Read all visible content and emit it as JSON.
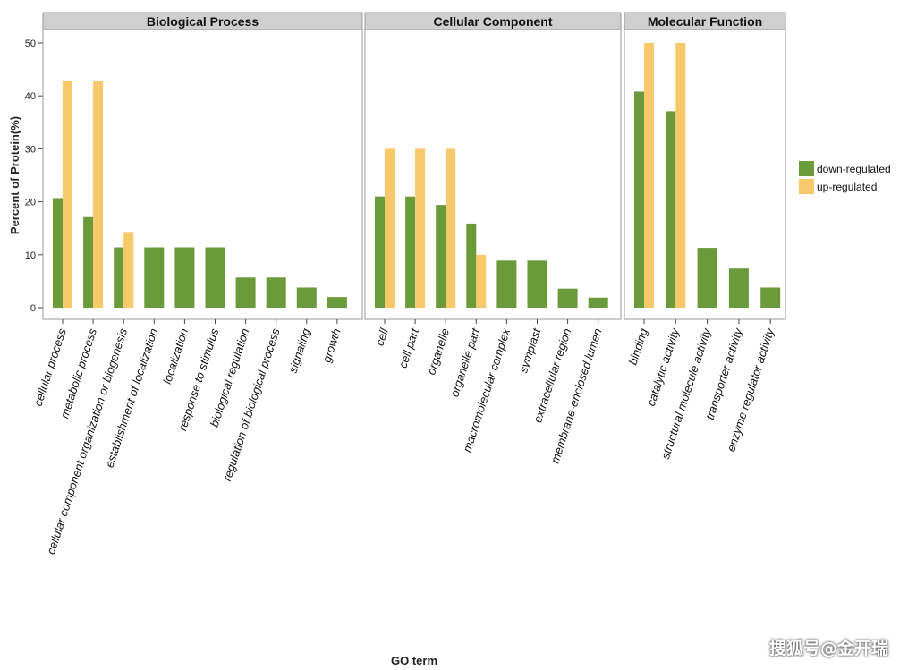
{
  "chart_data": {
    "type": "bar",
    "ylabel": "Percent of Protein(%)",
    "xlabel": "GO term",
    "ylim": [
      0,
      53
    ],
    "yticks": [
      0,
      10,
      20,
      30,
      40,
      50
    ],
    "legend": {
      "position": "right",
      "entries": [
        {
          "name": "down-regulated",
          "color": "#6a9a3a"
        },
        {
          "name": "up-regulated",
          "color": "#f7c96a"
        }
      ]
    },
    "panels": [
      {
        "title": "Biological Process",
        "categories": [
          "cellular process",
          "metabolic process",
          "cellular component organization or biogenesis",
          "establishment of localization",
          "localization",
          "response to stimulus",
          "biological regulation",
          "regulation of biological process",
          "signaling",
          "growth"
        ],
        "series": [
          {
            "name": "down-regulated",
            "values": [
              20.7,
              17.1,
              11.4,
              11.4,
              11.4,
              11.4,
              5.7,
              5.7,
              3.8,
              2.0
            ]
          },
          {
            "name": "up-regulated",
            "values": [
              42.9,
              42.9,
              14.3,
              null,
              null,
              null,
              null,
              null,
              null,
              null
            ]
          }
        ]
      },
      {
        "title": "Cellular Component",
        "categories": [
          "cell",
          "cell part",
          "organelle",
          "organelle part",
          "macromolecular complex",
          "symplast",
          "extracellular region",
          "membrane-enclosed lumen"
        ],
        "series": [
          {
            "name": "down-regulated",
            "values": [
              21.0,
              21.0,
              19.4,
              15.9,
              8.9,
              8.9,
              3.6,
              1.9
            ]
          },
          {
            "name": "up-regulated",
            "values": [
              30.0,
              30.0,
              30.0,
              10.0,
              null,
              null,
              null,
              null
            ]
          }
        ]
      },
      {
        "title": "Molecular Function",
        "categories": [
          "binding",
          "catalytic activity",
          "structural molecule activity",
          "transporter activity",
          "enzyme regulator activity"
        ],
        "series": [
          {
            "name": "down-regulated",
            "values": [
              40.8,
              37.1,
              11.3,
              7.4,
              3.8
            ]
          },
          {
            "name": "up-regulated",
            "values": [
              50.0,
              50.0,
              null,
              null,
              null
            ]
          }
        ]
      }
    ]
  },
  "watermark": "搜狐号@金开瑞",
  "colors": {
    "down": "#6a9a3a",
    "up": "#f7c96a",
    "strip_bg": "#cfcfcf",
    "panel_border": "#9a9a9a"
  }
}
